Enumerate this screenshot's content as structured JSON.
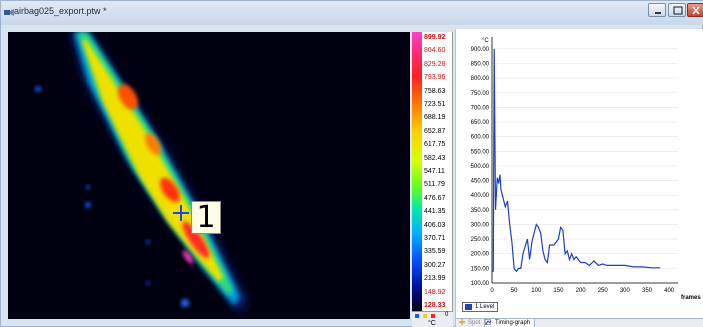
{
  "window": {
    "title": "airbag025_export.ptw *"
  },
  "thermal": {
    "spot_label": "1"
  },
  "palette": {
    "scale_values": [
      "899.92",
      "864.60",
      "829.28",
      "793.96",
      "758.63",
      "723.51",
      "688.19",
      "652.87",
      "617.75",
      "582.43",
      "547.11",
      "511.79",
      "476.67",
      "441.35",
      "406.03",
      "370.71",
      "335.59",
      "300.27",
      "213.99",
      "148.92",
      "128.33"
    ],
    "footer_zero": "0",
    "unit": "°C"
  },
  "graph": {
    "y_unit": "°C",
    "x_unit": "frames",
    "y_ticks": [
      "900.00",
      "850.00",
      "800.00",
      "750.00",
      "700.00",
      "650.00",
      "600.00",
      "550.00",
      "500.00",
      "450.00",
      "400.00",
      "350.00",
      "300.00",
      "250.00",
      "200.00",
      "150.00",
      "100.00"
    ],
    "x_ticks": [
      "0",
      "50",
      "100",
      "150",
      "200",
      "250",
      "300",
      "350",
      "400"
    ],
    "legend_label": "1 Level",
    "line_color": "#1e3ec8"
  },
  "chart_data": {
    "type": "line",
    "xlabel": "frames",
    "ylabel": "°C",
    "xlim": [
      0,
      420
    ],
    "ylim": [
      100,
      920
    ],
    "series": [
      {
        "name": "1 Level",
        "x": [
          0,
          3,
          5,
          8,
          12,
          15,
          18,
          20,
          25,
          30,
          35,
          40,
          45,
          50,
          55,
          60,
          65,
          70,
          80,
          85,
          90,
          100,
          105,
          110,
          115,
          120,
          125,
          130,
          140,
          150,
          155,
          160,
          165,
          170,
          175,
          180,
          185,
          190,
          200,
          210,
          220,
          230,
          240,
          250,
          260,
          280,
          300,
          320,
          340,
          360,
          380
        ],
        "y": [
          140,
          140,
          900,
          350,
          460,
          440,
          470,
          420,
          390,
          360,
          380,
          300,
          240,
          150,
          140,
          150,
          150,
          200,
          250,
          180,
          240,
          300,
          290,
          270,
          210,
          180,
          170,
          230,
          230,
          250,
          290,
          280,
          200,
          210,
          180,
          200,
          180,
          190,
          170,
          170,
          160,
          175,
          160,
          165,
          160,
          160,
          160,
          155,
          155,
          152,
          152
        ]
      }
    ]
  },
  "tabs": [
    {
      "label": "Spot"
    },
    {
      "label": "Timing-graph"
    }
  ]
}
